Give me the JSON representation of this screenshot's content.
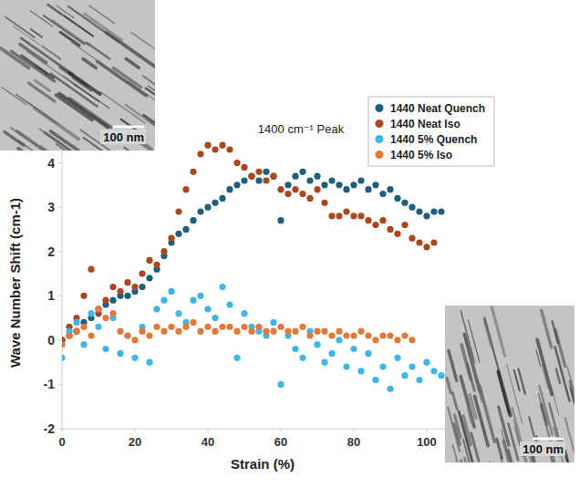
{
  "chart_data": {
    "type": "scatter",
    "title": "1400 cm⁻¹ Peak",
    "x_label": "Strain (%)",
    "y_label": "Wave Number Shift (cm-1)",
    "xlim": [
      0,
      110
    ],
    "ylim": [
      -2,
      5
    ],
    "xticks": [
      0,
      20,
      40,
      60,
      80,
      100
    ],
    "yticks": [
      -2,
      -1,
      0,
      1,
      2,
      3,
      4
    ],
    "grid": false,
    "legend": "top-right",
    "marker": "circle",
    "annotations": [
      "100 nm",
      "100 nm"
    ],
    "series": [
      {
        "name": "1440 Neat Quench",
        "color": "#1f5f7e",
        "x": [
          0,
          2,
          4,
          6,
          8,
          10,
          12,
          14,
          16,
          18,
          20,
          22,
          24,
          26,
          28,
          30,
          32,
          34,
          36,
          38,
          40,
          42,
          44,
          46,
          48,
          50,
          52,
          54,
          56,
          58,
          60,
          62,
          64,
          66,
          68,
          70,
          72,
          74,
          76,
          78,
          80,
          82,
          84,
          86,
          88,
          90,
          92,
          94,
          96,
          98,
          100,
          102,
          104
        ],
        "values": [
          0,
          0.1,
          0.2,
          0.4,
          0.5,
          0.7,
          0.8,
          0.9,
          1.0,
          1.0,
          1.1,
          1.2,
          1.4,
          1.6,
          1.9,
          2.2,
          2.4,
          2.5,
          2.7,
          2.9,
          3.0,
          3.1,
          3.2,
          3.4,
          3.5,
          3.6,
          3.7,
          3.6,
          3.8,
          3.7,
          2.7,
          3.5,
          3.7,
          3.8,
          3.6,
          3.7,
          3.5,
          3.6,
          3.5,
          3.4,
          3.5,
          3.6,
          3.4,
          3.5,
          3.3,
          3.4,
          3.2,
          3.1,
          3.0,
          2.9,
          2.8,
          2.9,
          2.9
        ]
      },
      {
        "name": "1440 Neat Iso",
        "color": "#a9471d",
        "x": [
          0,
          2,
          4,
          6,
          8,
          10,
          12,
          14,
          16,
          18,
          20,
          22,
          24,
          26,
          28,
          30,
          32,
          34,
          36,
          38,
          40,
          42,
          44,
          46,
          48,
          50,
          52,
          54,
          56,
          58,
          60,
          62,
          64,
          66,
          68,
          70,
          72,
          74,
          76,
          78,
          80,
          82,
          84,
          86,
          88,
          90,
          92,
          94,
          96,
          98,
          100,
          102
        ],
        "values": [
          0,
          0.3,
          0.5,
          1.0,
          1.6,
          0.6,
          0.9,
          1.2,
          1.1,
          1.3,
          1.2,
          1.5,
          1.8,
          1.7,
          2.0,
          2.3,
          2.9,
          3.4,
          3.8,
          4.2,
          4.4,
          4.3,
          4.4,
          4.3,
          4.0,
          3.9,
          3.7,
          3.8,
          3.6,
          3.7,
          3.4,
          3.3,
          3.4,
          3.3,
          3.2,
          3.4,
          3.1,
          2.8,
          2.8,
          2.9,
          2.8,
          2.8,
          2.7,
          2.6,
          2.7,
          2.5,
          2.4,
          2.6,
          2.3,
          2.2,
          2.1,
          2.2
        ]
      },
      {
        "name": "1440 5% Quench",
        "color": "#41b6e6",
        "x": [
          0,
          2,
          4,
          6,
          8,
          10,
          12,
          14,
          16,
          18,
          20,
          22,
          24,
          26,
          28,
          30,
          32,
          34,
          36,
          38,
          40,
          42,
          44,
          46,
          48,
          50,
          52,
          54,
          56,
          58,
          60,
          62,
          64,
          66,
          68,
          70,
          72,
          74,
          76,
          78,
          80,
          82,
          84,
          86,
          88,
          90,
          92,
          94,
          96,
          98,
          100,
          102,
          104
        ],
        "values": [
          -0.4,
          0.2,
          0.4,
          -0.1,
          0.6,
          0.3,
          -0.2,
          0.5,
          -0.3,
          0.1,
          -0.4,
          0.3,
          -0.5,
          0.7,
          0.9,
          1.1,
          0.6,
          0.4,
          0.9,
          1.0,
          0.7,
          0.5,
          1.2,
          0.8,
          -0.4,
          0.6,
          0.3,
          0.2,
          0.1,
          0.4,
          -1.0,
          0.1,
          -0.2,
          -0.4,
          0.2,
          -0.1,
          -0.5,
          -0.3,
          0.0,
          -0.6,
          -0.2,
          -0.7,
          -0.3,
          -0.9,
          -0.6,
          -1.1,
          -0.4,
          -0.8,
          -0.6,
          -0.9,
          -0.5,
          -0.7,
          -0.8
        ]
      },
      {
        "name": "1440 5% Iso",
        "color": "#e2793a",
        "x": [
          0,
          2,
          4,
          6,
          8,
          10,
          12,
          14,
          16,
          18,
          20,
          22,
          24,
          26,
          28,
          30,
          32,
          34,
          36,
          38,
          40,
          42,
          44,
          46,
          48,
          50,
          52,
          54,
          56,
          58,
          60,
          62,
          64,
          66,
          68,
          70,
          72,
          74,
          76,
          78,
          80,
          82,
          84,
          86,
          88,
          90,
          92,
          94,
          96
        ],
        "values": [
          -0.1,
          0.1,
          0.2,
          0.3,
          0.1,
          0.7,
          0.5,
          0.6,
          0.2,
          0.1,
          0.0,
          0.2,
          0.1,
          0.3,
          0.2,
          0.3,
          0.2,
          0.3,
          0.4,
          0.2,
          0.3,
          0.2,
          0.3,
          0.3,
          0.2,
          0.3,
          0.2,
          0.3,
          0.2,
          0.2,
          0.3,
          0.2,
          0.2,
          0.3,
          0.1,
          0.2,
          0.2,
          0.1,
          0.2,
          0.1,
          0.1,
          0.2,
          0.1,
          0.0,
          0.1,
          0.1,
          0.0,
          0.1,
          0.0
        ]
      }
    ]
  }
}
